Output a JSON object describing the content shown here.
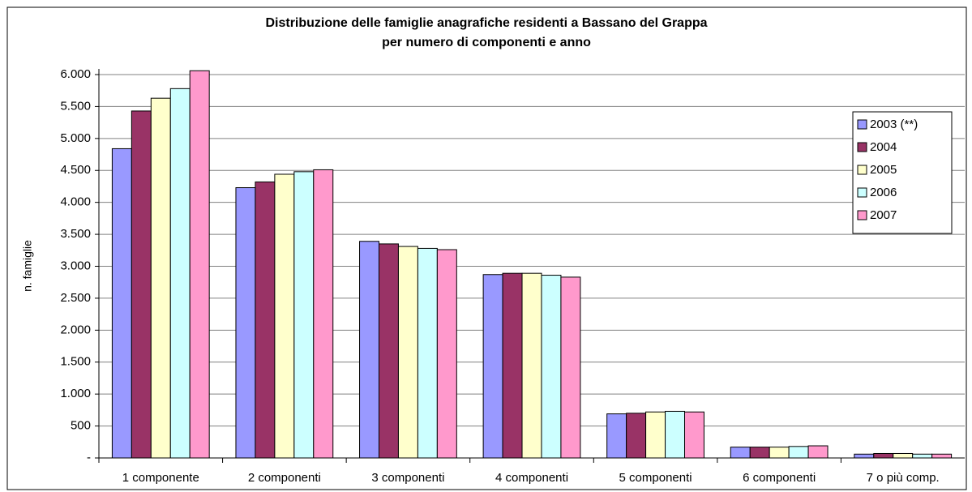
{
  "chart_data": {
    "type": "bar",
    "title": [
      "Distribuzione delle famiglie anagrafiche residenti a Bassano del Grappa",
      "per numero di componenti e anno"
    ],
    "y_label": "n. famiglie",
    "categories": [
      "1 componente",
      "2 componenti",
      "3 componenti",
      "4 componenti",
      "5 componenti",
      "6 componenti",
      "7 o più comp."
    ],
    "series": [
      {
        "name": "2003 (**)",
        "color": "#9999ff",
        "values": [
          4840,
          4230,
          3390,
          2870,
          690,
          170,
          60
        ]
      },
      {
        "name": "2004",
        "color": "#993366",
        "values": [
          5430,
          4320,
          3350,
          2890,
          700,
          170,
          70
        ]
      },
      {
        "name": "2005",
        "color": "#ffffcc",
        "values": [
          5630,
          4440,
          3310,
          2890,
          720,
          170,
          70
        ]
      },
      {
        "name": "2006",
        "color": "#ccffff",
        "values": [
          5780,
          4480,
          3280,
          2860,
          730,
          180,
          60
        ]
      },
      {
        "name": "2007",
        "color": "#ff99cc",
        "values": [
          6060,
          4510,
          3260,
          2830,
          720,
          190,
          60
        ]
      }
    ],
    "ylim": [
      0,
      6000
    ],
    "yticks": [
      {
        "value": 0,
        "label": "-"
      },
      500,
      {
        "value": 1000,
        "label": "1.000"
      },
      {
        "value": 1500,
        "label": "1.500"
      },
      {
        "value": 2000,
        "label": "2.000"
      },
      {
        "value": 2500,
        "label": "2.500"
      },
      {
        "value": 3000,
        "label": "3.000"
      },
      {
        "value": 3500,
        "label": "3.500"
      },
      {
        "value": 4000,
        "label": "4.000"
      },
      {
        "value": 4500,
        "label": "4.500"
      },
      {
        "value": 5000,
        "label": "5.000"
      },
      {
        "value": 5500,
        "label": "5.500"
      },
      {
        "value": 6000,
        "label": "6.000"
      }
    ],
    "grid": true,
    "legend": "right"
  }
}
